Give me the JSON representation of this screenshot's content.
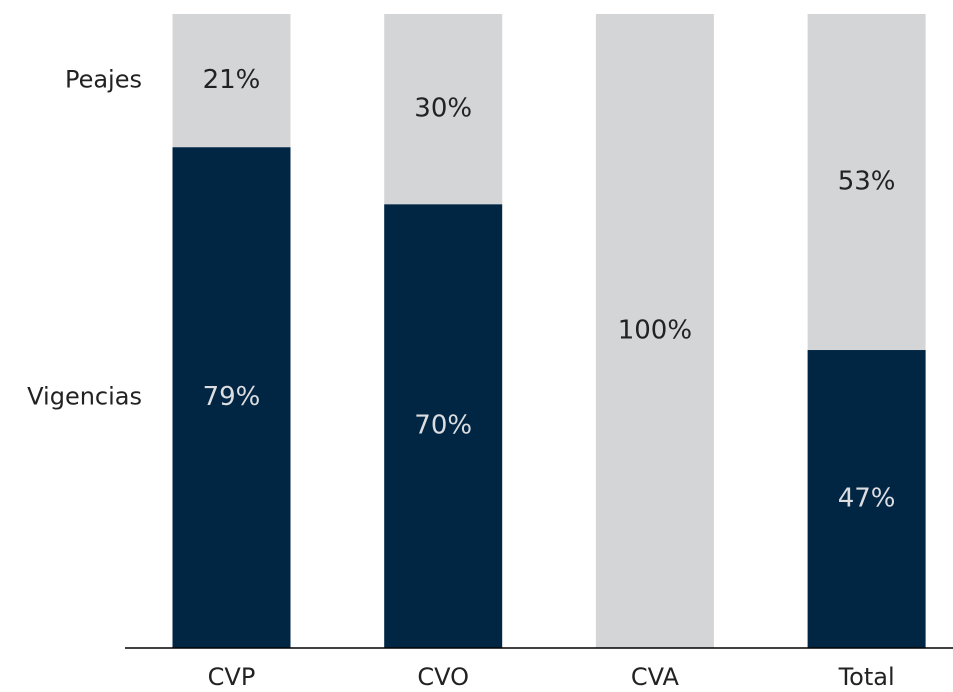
{
  "chart_data": {
    "type": "stacked_bar",
    "categories": [
      "CVP",
      "CVO",
      "CVA",
      "Total"
    ],
    "series": [
      {
        "name": "Vigencias",
        "color": "#002644",
        "values": [
          79,
          70,
          0,
          47
        ],
        "value_labels": [
          "79%",
          "70%",
          null,
          "47%"
        ]
      },
      {
        "name": "Peajes",
        "color": "#d4d5d7",
        "values": [
          21,
          30,
          100,
          53
        ],
        "value_labels": [
          "21%",
          "30%",
          "100%",
          "53%"
        ]
      }
    ],
    "ylim": [
      0,
      100
    ]
  }
}
